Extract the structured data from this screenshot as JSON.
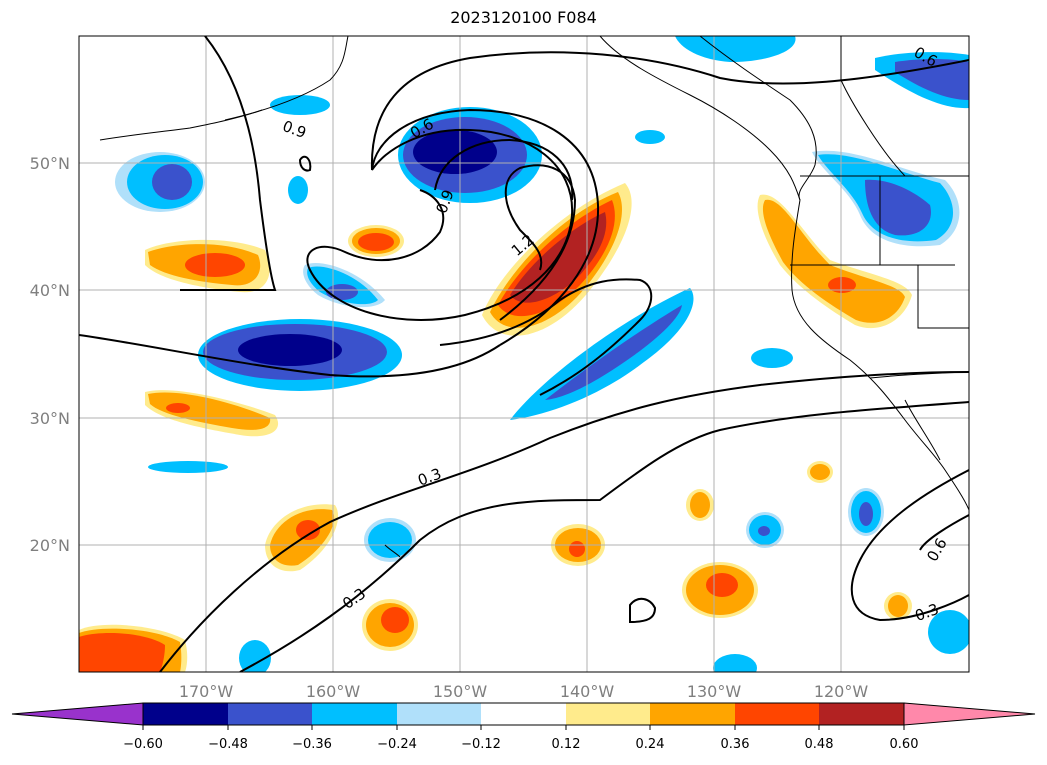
{
  "title": "2023120100 F084",
  "map": {
    "lat_labels": [
      "50°N",
      "40°N",
      "30°N",
      "20°N"
    ],
    "lon_labels": [
      "170°W",
      "160°W",
      "150°W",
      "140°W",
      "130°W",
      "120°W"
    ],
    "contour_labels": [
      "0.9",
      "0.6",
      "0.9",
      "1.2",
      "0.6",
      "0.3",
      "0.3",
      "0.6",
      "0.3"
    ],
    "grid": true
  },
  "colorbar": {
    "ticks": [
      "−0.60",
      "−0.48",
      "−0.36",
      "−0.24",
      "−0.12",
      "0.12",
      "0.24",
      "0.36",
      "0.48",
      "0.60"
    ],
    "colors": [
      "#9932cc",
      "#00008b",
      "#3a52cc",
      "#00bfff",
      "#b0e0fa",
      "#ffffff",
      "#ffeb8c",
      "#ffa500",
      "#ff4500",
      "#b22222",
      "#ff88aa"
    ]
  }
}
